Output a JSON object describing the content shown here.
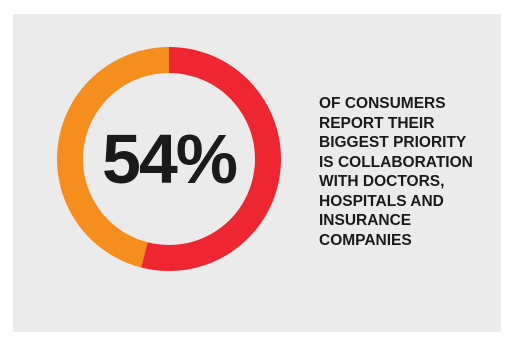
{
  "chart_data": {
    "type": "pie",
    "variant": "donut",
    "center_label": "54%",
    "slices": [
      {
        "value": 54,
        "color": "#ee2631"
      },
      {
        "value": 46,
        "color": "#f68d1f"
      }
    ]
  },
  "caption": {
    "lines": [
      "OF CONSUMERS",
      "REPORT THEIR",
      "BIGGEST PRIORITY",
      "IS COLLABORATION",
      "WITH DOCTORS,",
      "HOSPITALS AND",
      "INSURANCE",
      "COMPANIES"
    ]
  },
  "colors": {
    "background": "#ebebeb",
    "text": "#1a1a1a"
  }
}
